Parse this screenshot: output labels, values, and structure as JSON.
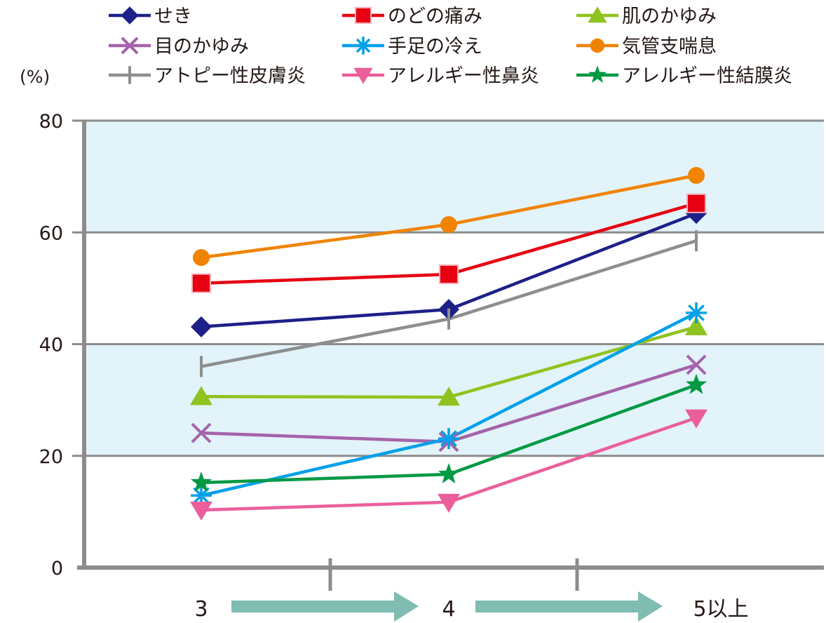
{
  "chart_data": {
    "type": "line",
    "title": "",
    "xlabel": "",
    "ylabel": "(%)",
    "ylim": [
      0,
      80
    ],
    "yticks": [
      0,
      20,
      40,
      60,
      80
    ],
    "grid": true,
    "shaded_bands": [
      [
        20,
        40
      ],
      [
        60,
        80
      ]
    ],
    "band_color": "#e2f3f9",
    "legend_position": "top",
    "categories": [
      "3",
      "4",
      "5以上"
    ],
    "series": [
      {
        "name": "せき",
        "marker": "diamond",
        "color": "#1d2088",
        "values": [
          43.1,
          46.2,
          63.4
        ]
      },
      {
        "name": "のどの痛み",
        "marker": "square",
        "color": "#e60012",
        "values": [
          50.9,
          52.5,
          65.2
        ]
      },
      {
        "name": "肌のかゆみ",
        "marker": "triangle-up",
        "color": "#8fc31f",
        "values": [
          30.6,
          30.5,
          43.1
        ]
      },
      {
        "name": "目のかゆみ",
        "marker": "x",
        "color": "#a563aa",
        "values": [
          24.1,
          22.5,
          36.3
        ]
      },
      {
        "name": "手足の冷え",
        "marker": "asterisk",
        "color": "#00a0e9",
        "values": [
          12.9,
          23.1,
          45.6
        ]
      },
      {
        "name": "気管支喘息",
        "marker": "circle",
        "color": "#f08300",
        "values": [
          55.5,
          61.4,
          70.2
        ]
      },
      {
        "name": "アトピー性皮膚炎",
        "marker": "plus",
        "color": "#8e8e8e",
        "values": [
          36.0,
          44.5,
          58.5
        ]
      },
      {
        "name": "アレルギー性鼻炎",
        "marker": "triangle-down",
        "color": "#ea5f9b",
        "values": [
          10.3,
          11.7,
          26.8
        ]
      },
      {
        "name": "アレルギー性結膜炎",
        "marker": "star",
        "color": "#009944",
        "values": [
          15.2,
          16.7,
          32.7
        ]
      }
    ],
    "arrow_color": "#7fbcb1"
  },
  "axis": {
    "unit_label": "(%)",
    "y_tick_labels": [
      "0",
      "20",
      "40",
      "60",
      "80"
    ],
    "x_labels": [
      "3",
      "4",
      "5以上"
    ]
  }
}
